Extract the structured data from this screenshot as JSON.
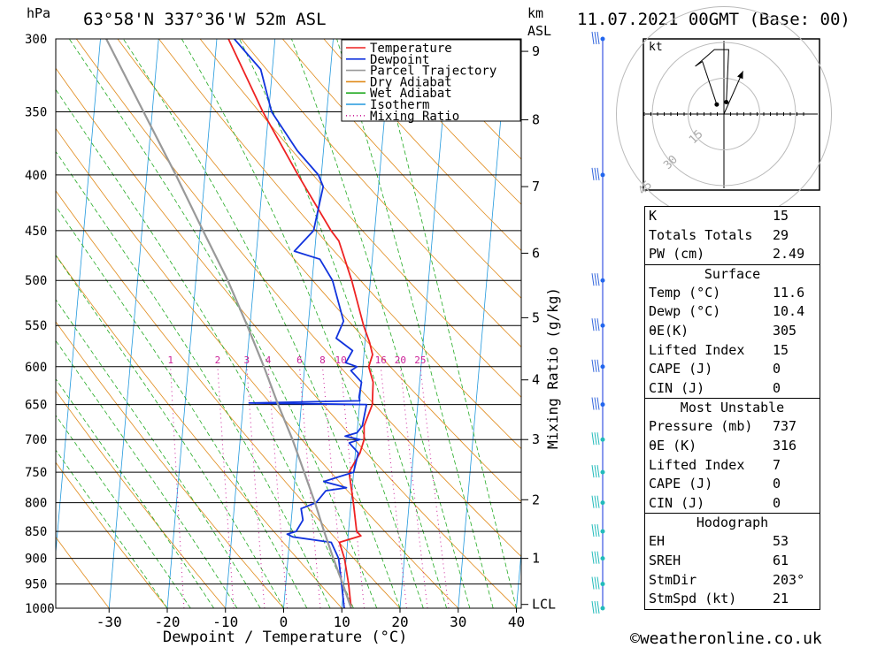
{
  "header": {
    "left_unit": "hPa",
    "location": "63°58'N 337°36'W 52m ASL",
    "km_unit": "km",
    "asl_unit": "ASL",
    "datetime": "11.07.2021 00GMT (Base: 00)"
  },
  "footer": {
    "copyright": "©weatheronline.co.uk"
  },
  "legend": [
    {
      "label": "Temperature",
      "color": "#ee2222",
      "style": "solid"
    },
    {
      "label": "Dewpoint",
      "color": "#1133dd",
      "style": "solid"
    },
    {
      "label": "Parcel Trajectory",
      "color": "#999999",
      "style": "solid"
    },
    {
      "label": "Dry Adiabat",
      "color": "#e08a1a",
      "style": "solid"
    },
    {
      "label": "Wet Adiabat",
      "color": "#22aa22",
      "style": "solid"
    },
    {
      "label": "Isotherm",
      "color": "#2299dd",
      "style": "solid"
    },
    {
      "label": "Mixing Ratio",
      "color": "#cc2299",
      "style": "dotted"
    }
  ],
  "chart_data": {
    "type": "line",
    "xlabel": "Dewpoint / Temperature (°C)",
    "ylabel": "hPa",
    "right_label": "Mixing Ratio (g/kg)",
    "xlim": [
      -40,
      40
    ],
    "ylim": [
      1000,
      300
    ],
    "pressure_levels": [
      300,
      350,
      400,
      450,
      500,
      550,
      600,
      650,
      700,
      750,
      800,
      850,
      900,
      950,
      1000
    ],
    "x_ticks": [
      -30,
      -20,
      -10,
      0,
      10,
      20,
      30,
      40
    ],
    "height_km_ticks": [
      {
        "km": "1",
        "p": 900
      },
      {
        "km": "2",
        "p": 795
      },
      {
        "km": "3",
        "p": 700
      },
      {
        "km": "4",
        "p": 617
      },
      {
        "km": "5",
        "p": 541
      },
      {
        "km": "6",
        "p": 472
      },
      {
        "km": "7",
        "p": 410
      },
      {
        "km": "8",
        "p": 356
      },
      {
        "km": "9",
        "p": 308
      },
      {
        "km": "LCL",
        "p": 992
      }
    ],
    "mixing_ratio_labels": [
      "1",
      "2",
      "3",
      "4",
      "6",
      "8",
      "10",
      "16",
      "20",
      "25"
    ],
    "series": [
      {
        "name": "Temperature",
        "color": "#ee2222",
        "points": [
          [
            1000,
            11.6
          ],
          [
            950,
            10.8
          ],
          [
            900,
            9.7
          ],
          [
            870,
            8.6
          ],
          [
            858,
            12.2
          ],
          [
            850,
            11.4
          ],
          [
            800,
            10.4
          ],
          [
            750,
            9.2
          ],
          [
            720,
            10.8
          ],
          [
            700,
            11.3
          ],
          [
            680,
            11.1
          ],
          [
            650,
            12.2
          ],
          [
            620,
            12.0
          ],
          [
            600,
            11.0
          ],
          [
            585,
            11.5
          ],
          [
            570,
            10.8
          ],
          [
            550,
            9.5
          ],
          [
            500,
            6.8
          ],
          [
            460,
            4.0
          ],
          [
            450,
            2.5
          ],
          [
            400,
            -4.0
          ],
          [
            350,
            -11.0
          ],
          [
            300,
            -18.0
          ]
        ]
      },
      {
        "name": "Dewpoint",
        "color": "#1133dd",
        "points": [
          [
            1000,
            10.4
          ],
          [
            950,
            9.6
          ],
          [
            900,
            8.7
          ],
          [
            870,
            7.2
          ],
          [
            860,
            0.5
          ],
          [
            855,
            -0.5
          ],
          [
            850,
            1.0
          ],
          [
            830,
            2.0
          ],
          [
            810,
            1.5
          ],
          [
            800,
            4.0
          ],
          [
            780,
            5.5
          ],
          [
            775,
            9.0
          ],
          [
            765,
            5.0
          ],
          [
            750,
            10.0
          ],
          [
            720,
            10.5
          ],
          [
            705,
            8.8
          ],
          [
            700,
            10.6
          ],
          [
            695,
            8.0
          ],
          [
            690,
            10.0
          ],
          [
            680,
            10.8
          ],
          [
            650,
            11.2
          ],
          [
            648,
            -9.0
          ],
          [
            645,
            10.0
          ],
          [
            640,
            9.8
          ],
          [
            620,
            10.0
          ],
          [
            605,
            8.0
          ],
          [
            600,
            9.0
          ],
          [
            595,
            7.0
          ],
          [
            580,
            8.0
          ],
          [
            575,
            7.0
          ],
          [
            565,
            5.0
          ],
          [
            545,
            6.0
          ],
          [
            500,
            3.5
          ],
          [
            478,
            1.0
          ],
          [
            470,
            -3.5
          ],
          [
            450,
            -0.5
          ],
          [
            410,
            0.5
          ],
          [
            400,
            -0.5
          ],
          [
            380,
            -4.5
          ],
          [
            350,
            -9.5
          ],
          [
            320,
            -12.0
          ],
          [
            300,
            -17.0
          ]
        ]
      },
      {
        "name": "Parcel Trajectory",
        "color": "#999999",
        "points": [
          [
            1000,
            11.6
          ],
          [
            950,
            9.8
          ],
          [
            900,
            7.8
          ],
          [
            850,
            5.8
          ],
          [
            800,
            3.8
          ],
          [
            750,
            1.5
          ],
          [
            700,
            -1.0
          ],
          [
            650,
            -4.0
          ],
          [
            600,
            -7.0
          ],
          [
            550,
            -10.5
          ],
          [
            500,
            -14.5
          ],
          [
            450,
            -19.5
          ],
          [
            400,
            -25.0
          ],
          [
            350,
            -31.5
          ],
          [
            300,
            -39.0
          ]
        ]
      }
    ]
  },
  "hodograph": {
    "unit": "kt",
    "ring_labels": [
      "15",
      "30",
      "45"
    ],
    "points_kt": [
      [
        -3,
        4
      ],
      [
        -9,
        22
      ],
      [
        -12,
        20
      ],
      [
        -4,
        27
      ],
      [
        2,
        27
      ],
      [
        1,
        5
      ]
    ],
    "storm_motion_kt": [
      8,
      18
    ]
  },
  "wind_barbs_pressures": [
    300,
    400,
    500,
    550,
    600,
    650,
    700,
    750,
    800,
    850,
    900,
    950,
    1000
  ],
  "stats": {
    "general": [
      {
        "key": "K",
        "value": "15"
      },
      {
        "key": "Totals Totals",
        "value": "29"
      },
      {
        "key": "PW (cm)",
        "value": "2.49"
      }
    ],
    "surface": {
      "title": "Surface",
      "rows": [
        {
          "key": "Temp (°C)",
          "value": "11.6"
        },
        {
          "key": "Dewp (°C)",
          "value": "10.4"
        },
        {
          "key": "θE(K)",
          "value": "305"
        },
        {
          "key": "Lifted Index",
          "value": "15"
        },
        {
          "key": "CAPE (J)",
          "value": "0"
        },
        {
          "key": "CIN (J)",
          "value": "0"
        }
      ]
    },
    "most_unstable": {
      "title": "Most Unstable",
      "rows": [
        {
          "key": "Pressure (mb)",
          "value": "737"
        },
        {
          "key": "θE (K)",
          "value": "316"
        },
        {
          "key": "Lifted Index",
          "value": "7"
        },
        {
          "key": "CAPE (J)",
          "value": "0"
        },
        {
          "key": "CIN (J)",
          "value": "0"
        }
      ]
    },
    "hodograph": {
      "title": "Hodograph",
      "rows": [
        {
          "key": "EH",
          "value": "53"
        },
        {
          "key": "SREH",
          "value": "61"
        },
        {
          "key": "StmDir",
          "value": "203°"
        },
        {
          "key": "StmSpd (kt)",
          "value": "21"
        }
      ]
    }
  }
}
